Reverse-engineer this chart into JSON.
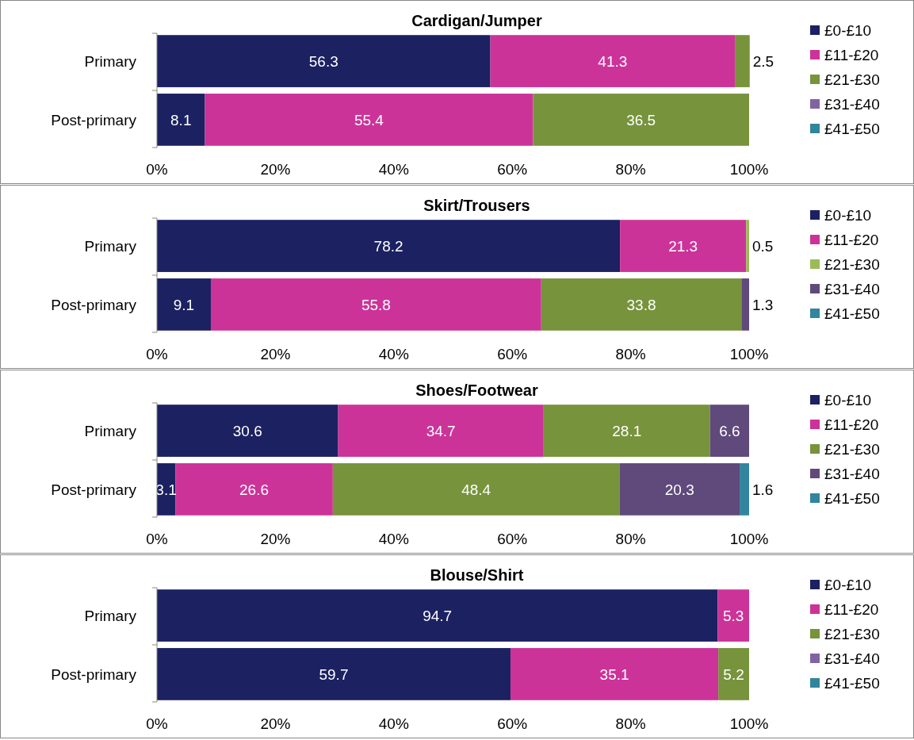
{
  "chart_data": [
    {
      "type": "bar",
      "title": "Cardigan/Jumper",
      "orientation": "horizontal",
      "stacked": true,
      "data_labels": true,
      "legend": "right",
      "categories": [
        "Primary",
        "Post-primary"
      ],
      "xlim": [
        0,
        100
      ],
      "xticks": [
        {
          "value": 0,
          "label": "0%"
        },
        {
          "value": 20,
          "label": "20%"
        },
        {
          "value": 40,
          "label": "40%"
        },
        {
          "value": 60,
          "label": "60%"
        },
        {
          "value": 80,
          "label": "80%"
        },
        {
          "value": 100,
          "label": "100%"
        }
      ],
      "series": [
        {
          "name": "£0-£10",
          "color": "#1b2161",
          "values": [
            56.3,
            8.1
          ]
        },
        {
          "name": "£11-£20",
          "color": "#cc3399",
          "values": [
            41.3,
            55.4
          ]
        },
        {
          "name": "£21-£30",
          "color": "#77933c",
          "values": [
            2.5,
            36.5
          ]
        },
        {
          "name": "£31-£40",
          "color": "#8064a2",
          "values": [
            null,
            null
          ]
        },
        {
          "name": "£41-£50",
          "color": "#31859c",
          "values": [
            null,
            null
          ]
        }
      ]
    },
    {
      "type": "bar",
      "title": "Skirt/Trousers",
      "orientation": "horizontal",
      "stacked": true,
      "data_labels": true,
      "legend": "right",
      "categories": [
        "Primary",
        "Post-primary"
      ],
      "xlim": [
        0,
        100
      ],
      "xticks": [
        {
          "value": 0,
          "label": "0%"
        },
        {
          "value": 20,
          "label": "20%"
        },
        {
          "value": 40,
          "label": "40%"
        },
        {
          "value": 60,
          "label": "60%"
        },
        {
          "value": 80,
          "label": "80%"
        },
        {
          "value": 100,
          "label": "100%"
        }
      ],
      "series": [
        {
          "name": "£0-£10",
          "color": "#1b2161",
          "values": [
            78.2,
            9.1
          ]
        },
        {
          "name": "£11-£20",
          "color": "#cc3399",
          "values": [
            21.3,
            55.8
          ]
        },
        {
          "name": "£21-£30",
          "color": "#9bbb59",
          "colors": [
            "#9bbb59",
            "#77933c"
          ],
          "values": [
            0.5,
            33.8
          ]
        },
        {
          "name": "£31-£40",
          "color": "#604a7b",
          "values": [
            null,
            1.3
          ]
        },
        {
          "name": "£41-£50",
          "color": "#31859c",
          "values": [
            null,
            null
          ]
        }
      ]
    },
    {
      "type": "bar",
      "title": "Shoes/Footwear",
      "orientation": "horizontal",
      "stacked": true,
      "data_labels": true,
      "legend": "right",
      "categories": [
        "Primary",
        "Post-primary"
      ],
      "xlim": [
        0,
        100
      ],
      "xticks": [
        {
          "value": 0,
          "label": "0%"
        },
        {
          "value": 20,
          "label": "20%"
        },
        {
          "value": 40,
          "label": "40%"
        },
        {
          "value": 60,
          "label": "60%"
        },
        {
          "value": 80,
          "label": "80%"
        },
        {
          "value": 100,
          "label": "100%"
        }
      ],
      "series": [
        {
          "name": "£0-£10",
          "color": "#1b2161",
          "values": [
            30.6,
            3.1
          ]
        },
        {
          "name": "£11-£20",
          "color": "#cc3399",
          "values": [
            34.7,
            26.6
          ]
        },
        {
          "name": "£21-£30",
          "color": "#77933c",
          "values": [
            28.1,
            48.4
          ]
        },
        {
          "name": "£31-£40",
          "color": "#604a7b",
          "values": [
            6.6,
            20.3
          ]
        },
        {
          "name": "£41-£50",
          "color": "#31859c",
          "values": [
            null,
            1.6
          ]
        }
      ]
    },
    {
      "type": "bar",
      "title": "Blouse/Shirt",
      "orientation": "horizontal",
      "stacked": true,
      "data_labels": true,
      "legend": "right",
      "categories": [
        "Primary",
        "Post-primary"
      ],
      "xlim": [
        0,
        100
      ],
      "xticks": [
        {
          "value": 0,
          "label": "0%"
        },
        {
          "value": 20,
          "label": "20%"
        },
        {
          "value": 40,
          "label": "40%"
        },
        {
          "value": 60,
          "label": "60%"
        },
        {
          "value": 80,
          "label": "80%"
        },
        {
          "value": 100,
          "label": "100%"
        }
      ],
      "series": [
        {
          "name": "£0-£10",
          "color": "#1b2161",
          "values": [
            94.7,
            59.7
          ]
        },
        {
          "name": "£11-£20",
          "color": "#cc3399",
          "values": [
            5.3,
            35.1
          ]
        },
        {
          "name": "£21-£30",
          "color": "#77933c",
          "values": [
            null,
            5.2
          ]
        },
        {
          "name": "£31-£40",
          "color": "#8064a2",
          "values": [
            null,
            null
          ]
        },
        {
          "name": "£41-£50",
          "color": "#31859c",
          "values": [
            null,
            null
          ]
        }
      ]
    }
  ]
}
